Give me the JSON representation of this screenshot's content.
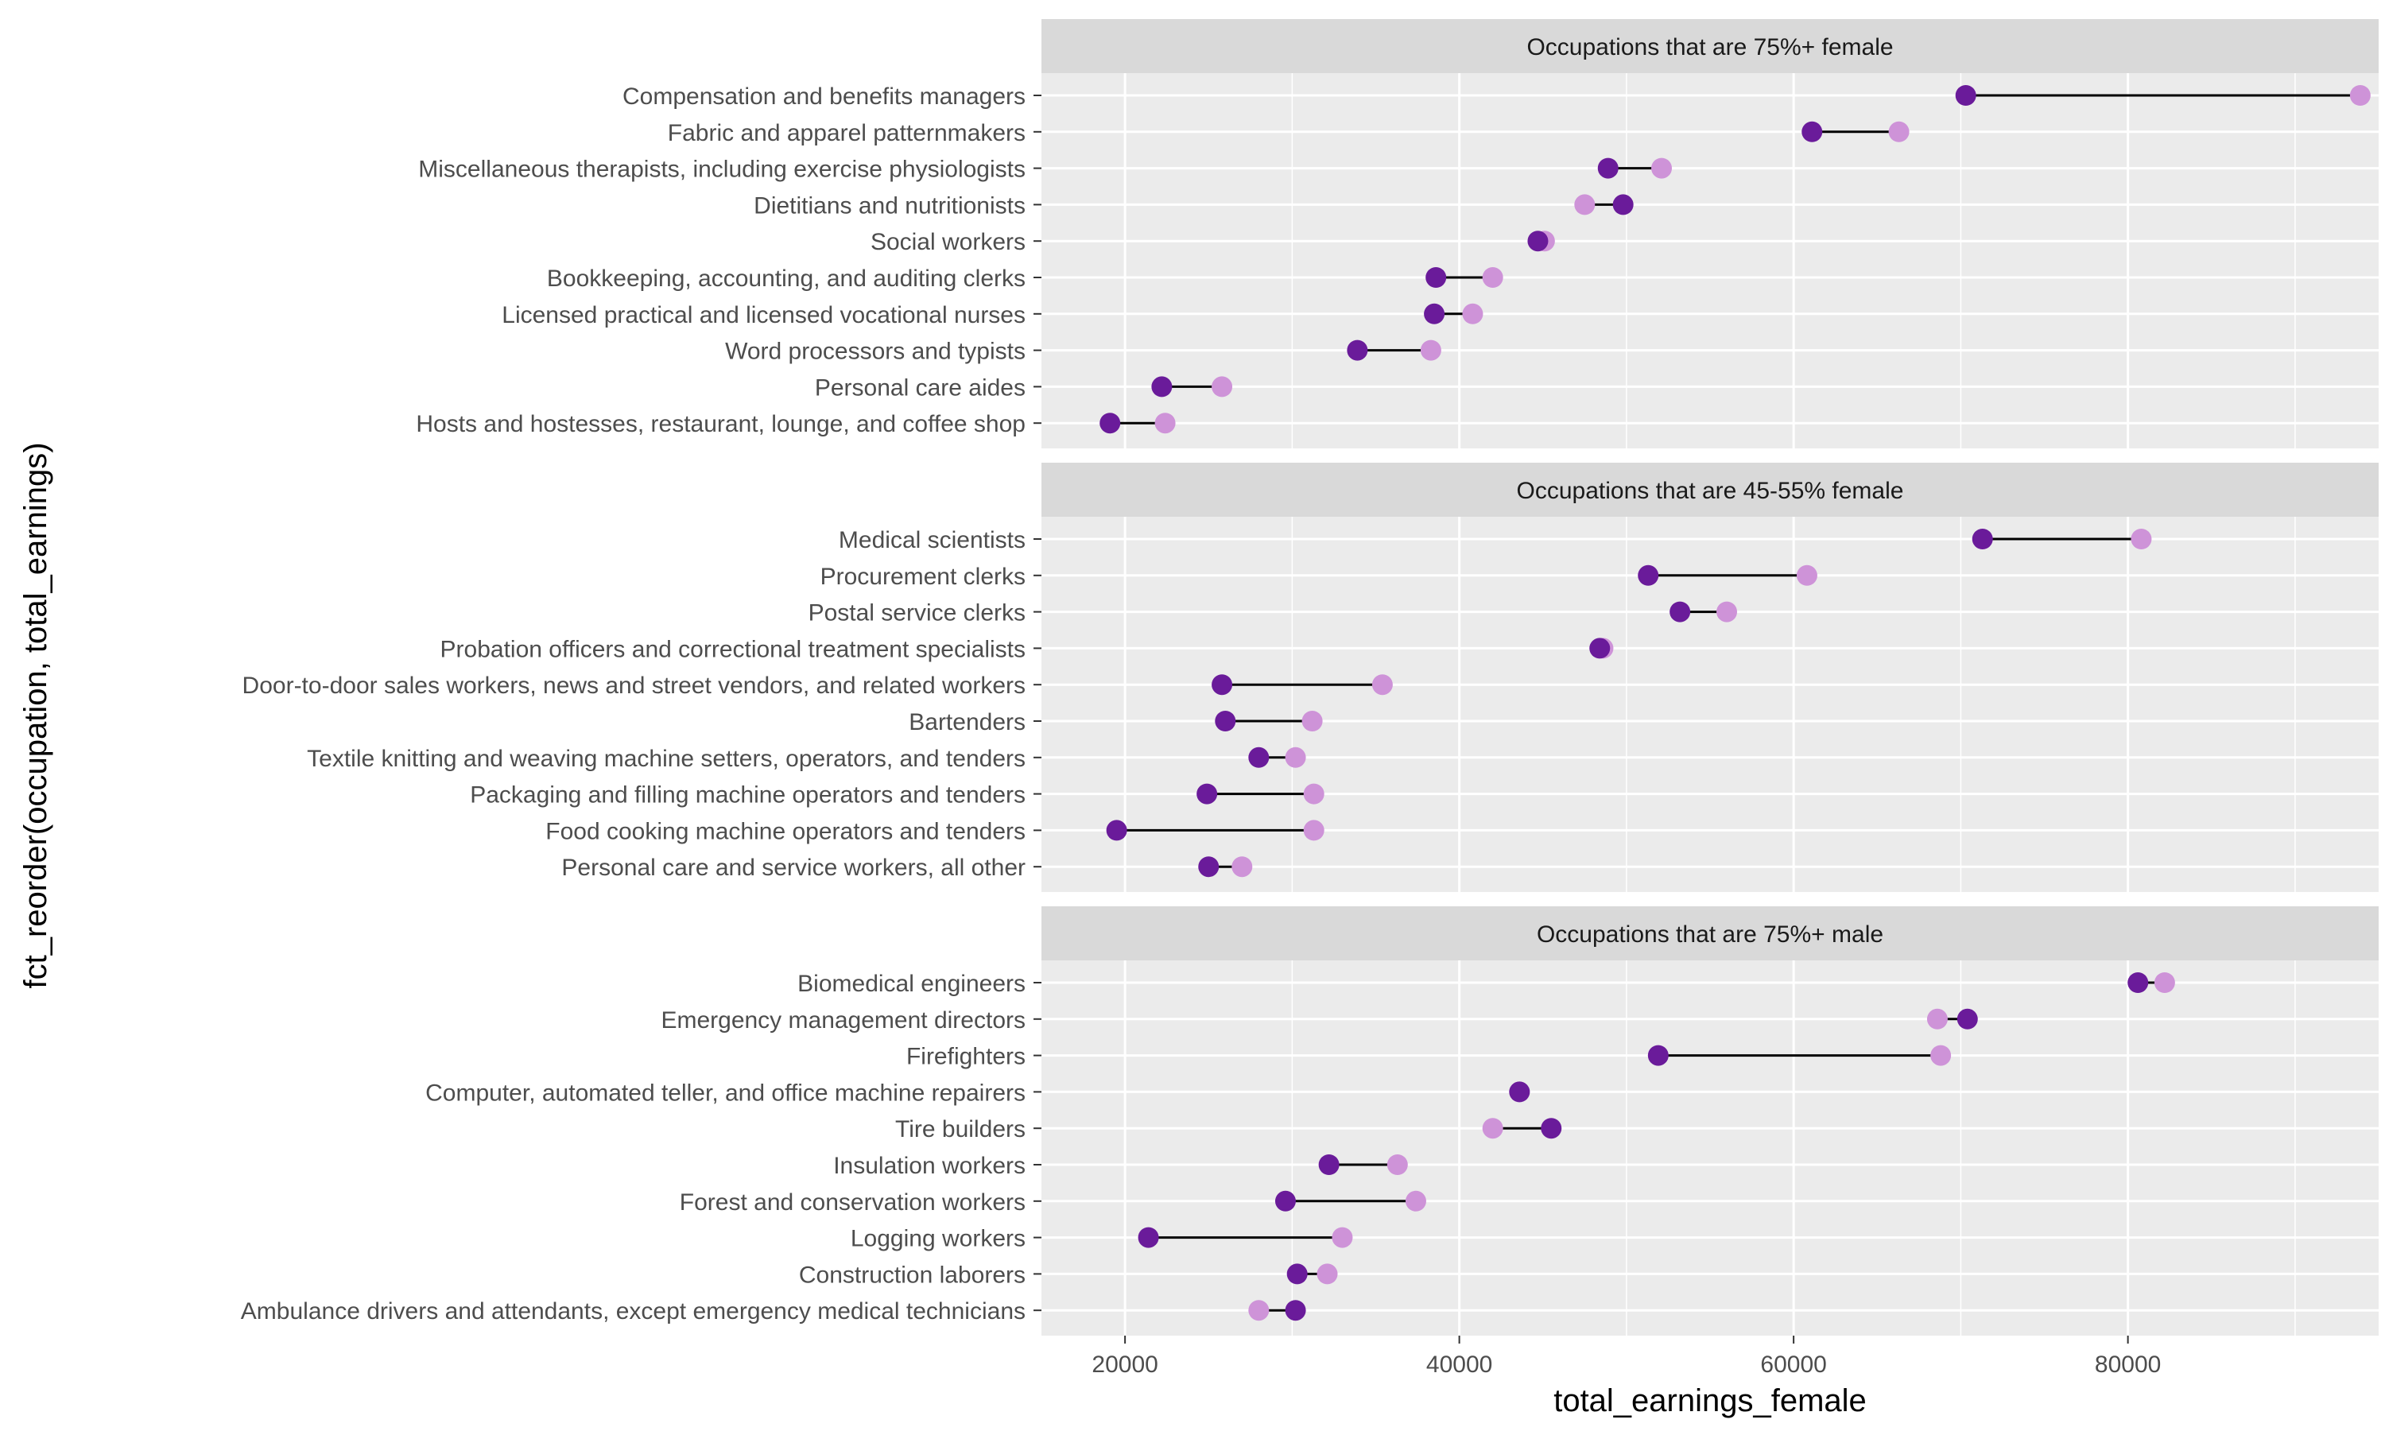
{
  "chart_data": {
    "type": "dumbbell",
    "xlabel": "total_earnings_female",
    "ylabel": "fct_reorder(occupation, total_earnings)",
    "xlim": [
      15000,
      95000
    ],
    "x_ticks": [
      20000,
      40000,
      60000,
      80000
    ],
    "grid": true,
    "colors": {
      "female_point": "#6a1b9a",
      "male_point": "#ce93d8",
      "segment": "#000000",
      "panel_background": "#ebebeb",
      "strip_background": "#d9d9d9",
      "grid": "#ffffff",
      "axis_text": "#4d4d4d",
      "title_text": "#000000"
    },
    "panels": [
      {
        "strip": "Occupations that are 75%+ female",
        "rows": [
          {
            "occupation": "Compensation and benefits managers",
            "female": 70300,
            "male": 93900
          },
          {
            "occupation": "Fabric and apparel patternmakers",
            "female": 61100,
            "male": 66300
          },
          {
            "occupation": "Miscellaneous therapists, including exercise physiologists",
            "female": 48900,
            "male": 52100
          },
          {
            "occupation": "Dietitians and nutritionists",
            "female": 49800,
            "male": 47500
          },
          {
            "occupation": "Social workers",
            "female": 44700,
            "male": 45100
          },
          {
            "occupation": "Bookkeeping, accounting, and auditing clerks",
            "female": 38600,
            "male": 42000
          },
          {
            "occupation": "Licensed practical and licensed vocational nurses",
            "female": 38500,
            "male": 40800
          },
          {
            "occupation": "Word processors and typists",
            "female": 33900,
            "male": 38300
          },
          {
            "occupation": "Personal care aides",
            "female": 22200,
            "male": 25800
          },
          {
            "occupation": "Hosts and hostesses, restaurant, lounge, and coffee shop",
            "female": 19100,
            "male": 22400
          }
        ]
      },
      {
        "strip": "Occupations that are 45-55% female",
        "rows": [
          {
            "occupation": "Medical scientists",
            "female": 71300,
            "male": 80800
          },
          {
            "occupation": "Procurement clerks",
            "female": 51300,
            "male": 60800
          },
          {
            "occupation": "Postal service clerks",
            "female": 53200,
            "male": 56000
          },
          {
            "occupation": "Probation officers and correctional treatment specialists",
            "female": 48400,
            "male": 48600
          },
          {
            "occupation": "Door-to-door sales workers, news and street vendors, and related workers",
            "female": 25800,
            "male": 35400
          },
          {
            "occupation": "Bartenders",
            "female": 26000,
            "male": 31200
          },
          {
            "occupation": "Textile knitting and weaving machine setters, operators, and tenders",
            "female": 28000,
            "male": 30200
          },
          {
            "occupation": "Packaging and filling machine operators and tenders",
            "female": 24900,
            "male": 31300
          },
          {
            "occupation": "Food cooking machine operators and tenders",
            "female": 19500,
            "male": 31300
          },
          {
            "occupation": "Personal care and service workers, all other",
            "female": 25000,
            "male": 27000
          }
        ]
      },
      {
        "strip": "Occupations that are 75%+ male",
        "rows": [
          {
            "occupation": "Biomedical engineers",
            "female": 80600,
            "male": 82200
          },
          {
            "occupation": "Emergency management directors",
            "female": 70400,
            "male": 68600
          },
          {
            "occupation": "Firefighters",
            "female": 51900,
            "male": 68800
          },
          {
            "occupation": "Computer, automated teller, and office machine repairers",
            "female": 43600,
            "male": 43600
          },
          {
            "occupation": "Tire builders",
            "female": 45500,
            "male": 42000
          },
          {
            "occupation": "Insulation workers",
            "female": 32200,
            "male": 36300
          },
          {
            "occupation": "Forest and conservation workers",
            "female": 29600,
            "male": 37400
          },
          {
            "occupation": "Logging workers",
            "female": 21400,
            "male": 33000
          },
          {
            "occupation": "Construction laborers",
            "female": 30300,
            "male": 32100
          },
          {
            "occupation": "Ambulance drivers and attendants, except emergency medical technicians",
            "female": 30200,
            "male": 28000
          }
        ]
      }
    ]
  }
}
